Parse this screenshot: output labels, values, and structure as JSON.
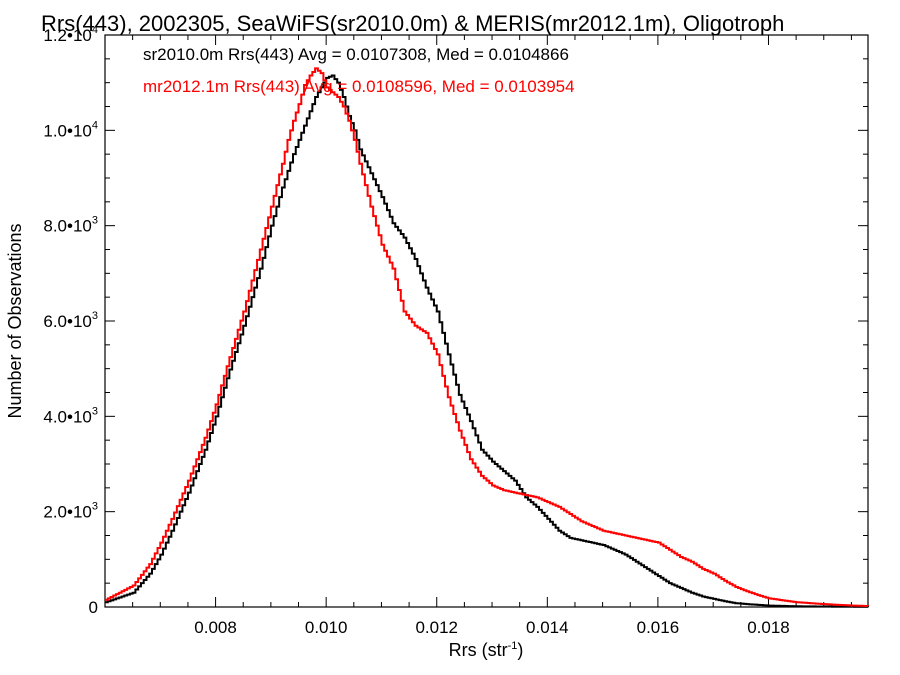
{
  "chart_data": {
    "type": "line",
    "title": "Rrs(443), 2002305, SeaWiFS(sr2010.0m) & MERIS(mr2012.1m), Oligotroph",
    "xlabel": "Rrs (str",
    "xlabel_sup": "-1",
    "xlabel_end": ")",
    "ylabel": "Number of Observations",
    "xlim": [
      0.006,
      0.0198
    ],
    "ylim": [
      0,
      12000
    ],
    "x_ticks": [
      0.008,
      0.01,
      0.012,
      0.014,
      0.016,
      0.018
    ],
    "x_tick_labels": [
      "0.008",
      "0.010",
      "0.012",
      "0.014",
      "0.016",
      "0.018"
    ],
    "y_ticks": [
      0,
      2000,
      4000,
      6000,
      8000,
      10000,
      12000
    ],
    "y_tick_labels": [
      {
        "base": "0",
        "exp": ""
      },
      {
        "base": "2.0•10",
        "exp": "3"
      },
      {
        "base": "4.0•10",
        "exp": "3"
      },
      {
        "base": "6.0•10",
        "exp": "3"
      },
      {
        "base": "8.0•10",
        "exp": "3"
      },
      {
        "base": "1.0•10",
        "exp": "4"
      },
      {
        "base": "1.2•10",
        "exp": "4"
      }
    ],
    "grid": false,
    "legend_position": "top-left",
    "series": [
      {
        "name": "sr2010.0m Rrs(443) Avg = 0.0107308, Med = 0.0104866",
        "color": "#000000",
        "x": [
          0.006,
          0.0065,
          0.0068,
          0.007,
          0.0072,
          0.0075,
          0.0078,
          0.008,
          0.0082,
          0.0085,
          0.0088,
          0.009,
          0.0092,
          0.0094,
          0.0095,
          0.0096,
          0.0097,
          0.0098,
          0.0099,
          0.01,
          0.0101,
          0.0102,
          0.0103,
          0.0104,
          0.0105,
          0.0106,
          0.0108,
          0.011,
          0.0112,
          0.0114,
          0.0116,
          0.0118,
          0.012,
          0.0122,
          0.0124,
          0.0126,
          0.0128,
          0.013,
          0.0132,
          0.0134,
          0.0136,
          0.0138,
          0.014,
          0.0142,
          0.0144,
          0.0146,
          0.0148,
          0.015,
          0.0152,
          0.0154,
          0.0156,
          0.0158,
          0.016,
          0.0162,
          0.0164,
          0.0166,
          0.0168,
          0.017,
          0.0172,
          0.0174,
          0.0176,
          0.018,
          0.0185,
          0.019,
          0.0198
        ],
        "y": [
          100,
          300,
          700,
          1100,
          1600,
          2400,
          3300,
          4000,
          4800,
          5900,
          7100,
          8000,
          8800,
          9500,
          9800,
          10100,
          10400,
          10700,
          10900,
          11100,
          11150,
          11000,
          10700,
          10300,
          10000,
          9600,
          9100,
          8600,
          8050,
          7750,
          7300,
          6700,
          6200,
          5300,
          4450,
          3900,
          3300,
          3050,
          2850,
          2650,
          2300,
          2100,
          1850,
          1600,
          1450,
          1400,
          1350,
          1300,
          1200,
          1100,
          950,
          800,
          650,
          500,
          400,
          300,
          220,
          170,
          120,
          80,
          60,
          30,
          15,
          10,
          5
        ]
      },
      {
        "name": "mr2012.1m Rrs(443) Avg = 0.0108596, Med = 0.0103954",
        "color": "#ff0000",
        "x": [
          0.006,
          0.0065,
          0.0068,
          0.007,
          0.0072,
          0.0075,
          0.0078,
          0.008,
          0.0082,
          0.0085,
          0.0088,
          0.009,
          0.0092,
          0.0093,
          0.0094,
          0.0095,
          0.0096,
          0.0097,
          0.0098,
          0.0099,
          0.01,
          0.0101,
          0.0102,
          0.0103,
          0.0104,
          0.0105,
          0.0106,
          0.0108,
          0.011,
          0.0112,
          0.0114,
          0.0116,
          0.0118,
          0.012,
          0.0122,
          0.0124,
          0.0126,
          0.0128,
          0.013,
          0.0132,
          0.0134,
          0.0136,
          0.0138,
          0.014,
          0.0142,
          0.0144,
          0.0146,
          0.0148,
          0.015,
          0.0152,
          0.0154,
          0.0156,
          0.0158,
          0.016,
          0.0162,
          0.0164,
          0.0166,
          0.0168,
          0.017,
          0.0172,
          0.0174,
          0.0176,
          0.0178,
          0.018,
          0.0185,
          0.019,
          0.0195,
          0.0198
        ],
        "y": [
          150,
          450,
          900,
          1350,
          1850,
          2650,
          3550,
          4250,
          5050,
          6200,
          7500,
          8400,
          9300,
          9800,
          10200,
          10550,
          10950,
          11150,
          11300,
          11200,
          10900,
          10800,
          10700,
          10500,
          10200,
          9800,
          9300,
          8400,
          7600,
          7100,
          6200,
          5900,
          5750,
          5300,
          4400,
          3700,
          3100,
          2750,
          2550,
          2450,
          2400,
          2350,
          2300,
          2200,
          2100,
          1950,
          1800,
          1700,
          1600,
          1550,
          1500,
          1450,
          1400,
          1350,
          1200,
          1050,
          950,
          800,
          700,
          550,
          420,
          330,
          250,
          180,
          100,
          60,
          30,
          20
        ]
      }
    ]
  }
}
